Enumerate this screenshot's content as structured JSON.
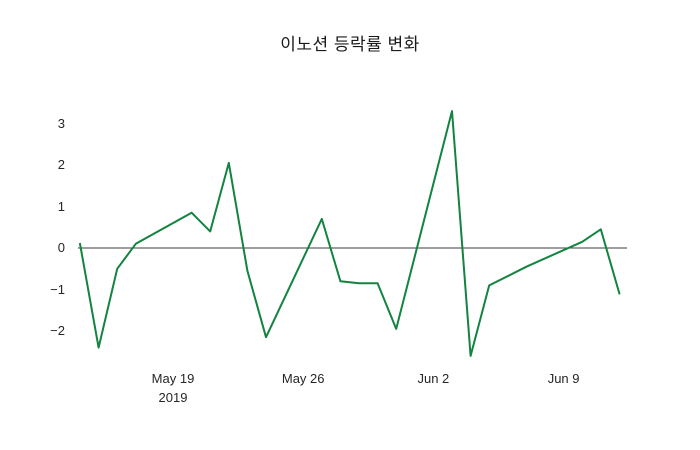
{
  "title": "이노션 등락률 변화",
  "colors": {
    "line": "#12843f",
    "zero_line": "#3d3d3d",
    "tick_text": "#262626",
    "title_text": "#1a1a1a",
    "background": "#ffffff"
  },
  "chart_data": {
    "type": "line",
    "title": "이노션 등락률 변화",
    "xlabel": "",
    "ylabel": "",
    "series_name": "등락률",
    "x": [
      "2019-05-14",
      "2019-05-15",
      "2019-05-16",
      "2019-05-17",
      "2019-05-20",
      "2019-05-21",
      "2019-05-22",
      "2019-05-23",
      "2019-05-24",
      "2019-05-27",
      "2019-05-28",
      "2019-05-29",
      "2019-05-30",
      "2019-05-31",
      "2019-06-03",
      "2019-06-04",
      "2019-06-05",
      "2019-06-07",
      "2019-06-10",
      "2019-06-11",
      "2019-06-12"
    ],
    "values": [
      0.1,
      -2.4,
      -0.5,
      0.1,
      0.85,
      0.4,
      2.05,
      -0.55,
      -2.15,
      0.7,
      -0.8,
      -0.85,
      -0.85,
      -1.95,
      3.3,
      -2.6,
      -0.9,
      -0.45,
      0.15,
      0.45,
      -1.1
    ],
    "ylim": [
      -2.9,
      3.6
    ],
    "grid": false,
    "zero_line": true,
    "legend": "none",
    "yticks": [
      {
        "value": 3,
        "label": "3"
      },
      {
        "value": 2,
        "label": "2"
      },
      {
        "value": 1,
        "label": "1"
      },
      {
        "value": 0,
        "label": "0"
      },
      {
        "value": -1,
        "label": "−1"
      },
      {
        "value": -2,
        "label": "−2"
      }
    ],
    "xticks": [
      {
        "date": "2019-05-19",
        "label": "May 19",
        "sublabel": "2019"
      },
      {
        "date": "2019-05-26",
        "label": "May 26",
        "sublabel": ""
      },
      {
        "date": "2019-06-02",
        "label": "Jun 2",
        "sublabel": ""
      },
      {
        "date": "2019-06-09",
        "label": "Jun 9",
        "sublabel": ""
      }
    ]
  }
}
